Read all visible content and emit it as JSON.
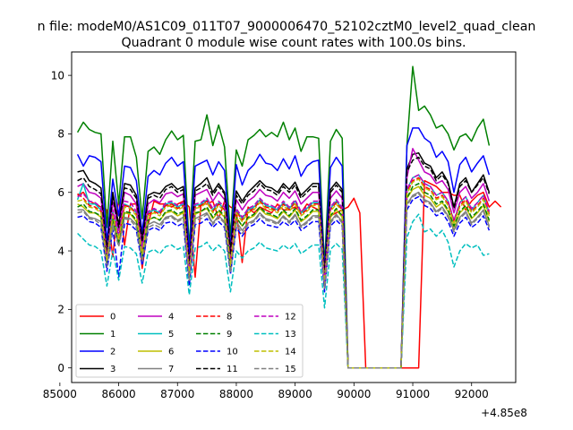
{
  "chart_data": {
    "type": "line",
    "suptitle": "n file: modeM0/AS1C09_011T07_9000006470_52102cztM0_level2_quad_clean",
    "title": "Quadrant 0 module wise count rates with 100.0s bins.",
    "xlabel": "",
    "ylabel": "",
    "x_offset_label": "+4.85e8",
    "xlim": [
      85200,
      92750
    ],
    "ylim": [
      -0.5,
      10.8
    ],
    "x_ticks": [
      85000,
      86000,
      87000,
      88000,
      89000,
      90000,
      91000,
      92000
    ],
    "x_tick_labels": [
      "85000",
      "86000",
      "87000",
      "88000",
      "89000",
      "90000",
      "91000",
      "92000"
    ],
    "y_ticks": [
      0,
      2,
      4,
      6,
      8,
      10
    ],
    "y_tick_labels": [
      "0",
      "2",
      "4",
      "6",
      "8",
      "10"
    ],
    "x_start": 85300,
    "x_step": 100,
    "legend_position": "lower-left",
    "legend_columns": 4,
    "series": [
      {
        "name": "0",
        "color": "#ff0000",
        "dash": "solid",
        "values": [
          5.9,
          6.0,
          5.7,
          5.6,
          5.5,
          5.4,
          3.8,
          5.8,
          4.2,
          5.6,
          5.6,
          3.4,
          4.9,
          5.7,
          5.6,
          5.6,
          5.5,
          5.6,
          5.7,
          5.5,
          3.1,
          5.6,
          5.6,
          5.7,
          5.1,
          5.7,
          5.5,
          5.4,
          3.6,
          5.5,
          5.3,
          5.5,
          5.4,
          5.3,
          5.6,
          5.4,
          5.4,
          5.5,
          5.3,
          5.6,
          5.5,
          5.4,
          3.0,
          5.2,
          5.3,
          5.4,
          5.5,
          5.8,
          5.3,
          0,
          0,
          0,
          0,
          0,
          0,
          0,
          0,
          0,
          0,
          6.4,
          6.3,
          6.2,
          6.0,
          6.0,
          5.9,
          5.9,
          5.4,
          5.7,
          5.9,
          6.0,
          5.5,
          5.7,
          5.5
        ]
      },
      {
        "name": "1",
        "color": "#008000",
        "dash": "solid",
        "values": [
          8.05,
          8.4,
          8.15,
          8.05,
          8.0,
          4.8,
          7.75,
          5.6,
          7.9,
          7.9,
          7.2,
          5.1,
          7.4,
          7.55,
          7.3,
          7.8,
          8.1,
          7.8,
          7.95,
          4.1,
          7.75,
          7.8,
          8.65,
          7.6,
          8.3,
          7.55,
          4.5,
          7.45,
          6.9,
          7.8,
          7.95,
          8.15,
          7.9,
          8.05,
          7.9,
          8.4,
          7.8,
          8.2,
          7.4,
          7.9,
          7.9,
          7.85,
          3.5,
          7.75,
          8.15,
          7.85,
          0,
          0,
          0,
          0,
          0,
          0,
          0,
          0,
          0,
          0,
          7.6,
          10.3,
          8.8,
          8.95,
          8.65,
          8.2,
          8.3,
          8.0,
          7.45,
          7.9,
          8.0,
          7.75,
          8.2,
          8.5,
          7.6
        ]
      },
      {
        "name": "2",
        "color": "#0000ff",
        "dash": "solid",
        "values": [
          7.3,
          6.9,
          7.25,
          7.2,
          7.05,
          4.3,
          6.45,
          5.2,
          6.9,
          6.85,
          6.4,
          4.6,
          6.55,
          6.75,
          6.6,
          7.0,
          7.2,
          6.9,
          7.05,
          3.9,
          6.9,
          7.0,
          7.1,
          6.6,
          7.05,
          6.75,
          4.1,
          6.95,
          6.25,
          6.75,
          6.95,
          7.3,
          7.0,
          6.95,
          6.75,
          7.15,
          6.8,
          7.25,
          6.55,
          6.9,
          7.05,
          7.1,
          3.3,
          6.85,
          7.2,
          6.9,
          0,
          0,
          0,
          0,
          0,
          0,
          0,
          0,
          0,
          0,
          7.6,
          8.2,
          8.2,
          7.85,
          7.7,
          7.2,
          7.4,
          7.05,
          6.0,
          6.95,
          7.2,
          6.7,
          7.0,
          7.25,
          6.6
        ]
      },
      {
        "name": "3",
        "color": "#000000",
        "dash": "solid",
        "values": [
          6.7,
          6.75,
          6.4,
          6.3,
          6.15,
          4.0,
          6.0,
          4.9,
          6.3,
          6.25,
          5.9,
          4.4,
          5.9,
          6.0,
          5.95,
          6.2,
          6.3,
          6.1,
          6.2,
          3.5,
          6.15,
          6.3,
          6.5,
          6.0,
          6.3,
          6.0,
          4.0,
          6.05,
          5.7,
          6.0,
          6.2,
          6.4,
          6.2,
          6.15,
          6.0,
          6.3,
          6.1,
          6.35,
          5.9,
          6.1,
          6.3,
          6.3,
          3.2,
          6.1,
          6.35,
          6.1,
          0,
          0,
          0,
          0,
          0,
          0,
          0,
          0,
          0,
          0,
          6.8,
          7.3,
          7.35,
          7.0,
          6.9,
          6.5,
          6.7,
          6.35,
          5.5,
          6.3,
          6.5,
          6.0,
          6.3,
          6.6,
          6.0
        ]
      },
      {
        "name": "4",
        "color": "#bf00bf",
        "dash": "solid",
        "values": [
          6.2,
          6.3,
          6.0,
          5.95,
          5.8,
          3.9,
          5.7,
          4.7,
          6.0,
          5.9,
          5.6,
          4.2,
          5.6,
          5.75,
          5.65,
          5.95,
          6.0,
          5.85,
          5.95,
          3.4,
          5.9,
          6.0,
          6.1,
          5.7,
          6.0,
          5.75,
          3.8,
          5.75,
          5.4,
          5.7,
          5.85,
          6.1,
          5.9,
          5.85,
          5.7,
          6.0,
          5.8,
          6.05,
          5.6,
          5.8,
          6.0,
          6.0,
          3.1,
          5.8,
          6.05,
          5.8,
          0,
          0,
          0,
          0,
          0,
          0,
          0,
          0,
          0,
          0,
          6.5,
          7.5,
          7.1,
          6.7,
          6.6,
          6.3,
          6.4,
          6.1,
          5.3,
          6.0,
          6.2,
          5.8,
          6.0,
          6.3,
          5.7
        ]
      },
      {
        "name": "5",
        "color": "#00bfbf",
        "dash": "solid",
        "values": [
          5.75,
          6.3,
          5.6,
          5.6,
          5.4,
          3.7,
          5.35,
          4.5,
          5.6,
          5.5,
          5.3,
          4.0,
          5.3,
          5.4,
          5.3,
          5.6,
          5.65,
          5.5,
          5.6,
          3.2,
          5.55,
          5.6,
          5.75,
          5.4,
          5.65,
          5.4,
          3.6,
          5.4,
          5.1,
          5.4,
          5.5,
          5.75,
          5.55,
          5.5,
          5.4,
          5.65,
          5.45,
          5.7,
          5.3,
          5.45,
          5.65,
          5.65,
          2.9,
          5.45,
          5.7,
          5.45,
          0,
          0,
          0,
          0,
          0,
          0,
          0,
          0,
          0,
          0,
          6.1,
          6.5,
          6.6,
          6.3,
          6.2,
          5.9,
          6.0,
          5.7,
          5.0,
          5.65,
          5.85,
          5.4,
          5.65,
          5.9,
          5.3
        ]
      },
      {
        "name": "6",
        "color": "#bfbf00",
        "dash": "solid",
        "values": [
          5.6,
          5.5,
          5.3,
          5.3,
          5.15,
          3.6,
          5.1,
          4.3,
          5.3,
          5.25,
          5.0,
          3.8,
          5.05,
          5.15,
          5.05,
          5.3,
          5.35,
          5.2,
          5.3,
          3.1,
          5.25,
          5.35,
          5.45,
          5.1,
          5.35,
          5.15,
          3.4,
          5.15,
          4.85,
          5.1,
          5.2,
          5.45,
          5.25,
          5.2,
          5.1,
          5.35,
          5.15,
          5.4,
          5.0,
          5.15,
          5.35,
          5.35,
          2.8,
          5.15,
          5.4,
          5.15,
          0,
          0,
          0,
          0,
          0,
          0,
          0,
          0,
          0,
          0,
          5.8,
          6.1,
          6.2,
          5.9,
          5.8,
          5.5,
          5.65,
          5.35,
          4.8,
          5.3,
          5.5,
          5.1,
          5.3,
          5.55,
          5.0
        ]
      },
      {
        "name": "7",
        "color": "#808080",
        "dash": "solid",
        "values": [
          5.4,
          5.4,
          5.15,
          5.1,
          5.0,
          3.5,
          4.95,
          4.2,
          5.15,
          5.1,
          4.9,
          3.7,
          4.9,
          5.0,
          4.9,
          5.15,
          5.2,
          5.05,
          5.15,
          3.0,
          5.1,
          5.2,
          5.3,
          4.95,
          5.2,
          5.0,
          3.3,
          5.0,
          4.7,
          4.95,
          5.05,
          5.3,
          5.1,
          5.05,
          4.95,
          5.2,
          5.0,
          5.25,
          4.85,
          5.0,
          5.2,
          5.2,
          2.7,
          5.0,
          5.25,
          5.0,
          0,
          0,
          0,
          0,
          0,
          0,
          0,
          0,
          0,
          0,
          5.6,
          5.9,
          6.0,
          5.75,
          5.65,
          5.35,
          5.5,
          5.2,
          4.7,
          5.15,
          5.35,
          4.95,
          5.15,
          5.4,
          4.85
        ]
      },
      {
        "name": "8",
        "color": "#ff0000",
        "dash": "dashed",
        "values": [
          5.95,
          5.8,
          5.55,
          5.5,
          5.35,
          3.7,
          5.3,
          4.45,
          5.55,
          5.5,
          5.25,
          3.95,
          5.25,
          5.35,
          5.25,
          5.55,
          5.6,
          5.45,
          5.55,
          3.2,
          5.5,
          5.55,
          5.7,
          5.35,
          5.6,
          5.4,
          3.55,
          5.35,
          5.05,
          5.35,
          5.45,
          5.7,
          5.5,
          5.45,
          5.35,
          5.6,
          5.4,
          5.65,
          5.25,
          5.4,
          5.6,
          5.6,
          2.9,
          5.4,
          5.65,
          5.4,
          0,
          0,
          0,
          0,
          0,
          0,
          0,
          0,
          0,
          0,
          6.0,
          6.4,
          6.5,
          6.2,
          6.1,
          5.8,
          5.9,
          5.6,
          5.0,
          5.55,
          5.75,
          5.35,
          5.55,
          5.8,
          5.25
        ]
      },
      {
        "name": "9",
        "color": "#008000",
        "dash": "dashed",
        "values": [
          5.5,
          5.6,
          5.35,
          5.3,
          5.2,
          3.6,
          5.1,
          4.3,
          5.35,
          5.3,
          5.05,
          3.8,
          5.05,
          5.15,
          5.05,
          5.35,
          5.4,
          5.25,
          5.35,
          3.1,
          5.3,
          5.35,
          5.5,
          5.15,
          5.4,
          5.2,
          3.45,
          5.15,
          4.85,
          5.15,
          5.25,
          5.5,
          5.3,
          5.25,
          5.15,
          5.4,
          5.2,
          5.45,
          5.05,
          5.2,
          5.4,
          5.4,
          2.8,
          5.2,
          5.45,
          5.2,
          0,
          0,
          0,
          0,
          0,
          0,
          0,
          0,
          0,
          0,
          5.8,
          6.2,
          6.3,
          6.0,
          5.9,
          5.6,
          5.7,
          5.4,
          4.85,
          5.35,
          5.55,
          5.15,
          5.35,
          5.6,
          5.05
        ]
      },
      {
        "name": "10",
        "color": "#0000ff",
        "dash": "dashed",
        "values": [
          5.15,
          5.2,
          5.0,
          4.95,
          4.8,
          3.3,
          4.75,
          3.1,
          4.95,
          4.9,
          4.7,
          3.5,
          4.7,
          4.8,
          4.7,
          4.95,
          5.0,
          4.85,
          4.95,
          2.8,
          4.9,
          4.95,
          5.1,
          4.8,
          5.0,
          4.8,
          3.2,
          4.8,
          4.5,
          4.8,
          4.9,
          5.1,
          4.9,
          4.85,
          4.8,
          5.0,
          4.85,
          5.05,
          4.7,
          4.85,
          5.0,
          5.0,
          2.6,
          4.85,
          5.05,
          4.85,
          0,
          0,
          0,
          0,
          0,
          0,
          0,
          0,
          0,
          0,
          5.4,
          5.75,
          5.85,
          5.55,
          5.45,
          5.2,
          5.3,
          5.0,
          4.5,
          4.95,
          5.15,
          4.8,
          4.95,
          5.2,
          4.7
        ]
      },
      {
        "name": "11",
        "color": "#000000",
        "dash": "dashed",
        "values": [
          6.4,
          6.5,
          6.2,
          6.1,
          5.95,
          4.0,
          5.85,
          4.8,
          6.15,
          6.1,
          5.8,
          4.3,
          5.8,
          5.9,
          5.8,
          6.1,
          6.2,
          6.0,
          6.1,
          3.5,
          6.05,
          6.15,
          6.3,
          5.9,
          6.2,
          5.95,
          3.9,
          5.9,
          5.6,
          5.9,
          6.05,
          6.3,
          6.1,
          6.05,
          5.9,
          6.2,
          6.0,
          6.25,
          5.8,
          6.0,
          6.2,
          6.2,
          3.2,
          6.0,
          6.25,
          6.0,
          0,
          0,
          0,
          0,
          0,
          0,
          0,
          0,
          0,
          0,
          6.7,
          7.1,
          7.2,
          6.9,
          6.8,
          6.4,
          6.6,
          6.3,
          5.45,
          6.2,
          6.4,
          6.0,
          6.25,
          6.5,
          5.95
        ]
      },
      {
        "name": "12",
        "color": "#bf00bf",
        "dash": "dashed",
        "values": [
          5.85,
          5.95,
          5.7,
          5.65,
          5.5,
          3.75,
          5.4,
          4.5,
          5.7,
          5.65,
          5.35,
          4.05,
          5.35,
          5.45,
          5.35,
          5.65,
          5.7,
          5.55,
          5.65,
          3.25,
          5.6,
          5.65,
          5.8,
          5.45,
          5.7,
          5.5,
          3.6,
          5.45,
          5.15,
          5.45,
          5.55,
          5.8,
          5.6,
          5.55,
          5.45,
          5.7,
          5.5,
          5.75,
          5.35,
          5.5,
          5.7,
          5.7,
          2.95,
          5.5,
          5.75,
          5.5,
          0,
          0,
          0,
          0,
          0,
          0,
          0,
          0,
          0,
          0,
          6.1,
          6.5,
          6.6,
          6.3,
          6.2,
          5.9,
          6.0,
          5.7,
          5.05,
          5.65,
          5.85,
          5.45,
          5.65,
          5.9,
          5.35
        ]
      },
      {
        "name": "13",
        "color": "#00bfbf",
        "dash": "dashed",
        "values": [
          4.6,
          4.4,
          4.2,
          4.15,
          4.0,
          2.8,
          4.0,
          3.0,
          4.15,
          4.1,
          3.9,
          2.9,
          3.95,
          4.05,
          3.9,
          4.15,
          4.2,
          4.05,
          4.15,
          2.5,
          4.1,
          4.15,
          4.3,
          4.0,
          4.2,
          4.0,
          2.6,
          4.0,
          3.75,
          4.0,
          4.1,
          4.3,
          4.1,
          4.05,
          4.0,
          4.2,
          4.05,
          4.25,
          3.9,
          4.05,
          4.2,
          4.2,
          2.05,
          4.05,
          4.25,
          4.05,
          0,
          0,
          0,
          0,
          0,
          0,
          0,
          0,
          0,
          0,
          4.45,
          5.0,
          5.25,
          4.65,
          4.75,
          4.5,
          4.7,
          4.3,
          3.45,
          4.0,
          4.25,
          4.1,
          4.2,
          3.85,
          3.9
        ]
      },
      {
        "name": "14",
        "color": "#bfbf00",
        "dash": "dashed",
        "values": [
          5.7,
          5.75,
          5.5,
          5.45,
          5.3,
          3.65,
          5.2,
          4.4,
          5.5,
          5.45,
          5.2,
          3.9,
          5.2,
          5.3,
          5.2,
          5.5,
          5.55,
          5.4,
          5.5,
          3.15,
          5.45,
          5.5,
          5.65,
          5.3,
          5.55,
          5.35,
          3.5,
          5.3,
          5.0,
          5.3,
          5.4,
          5.65,
          5.45,
          5.4,
          5.3,
          5.55,
          5.35,
          5.6,
          5.2,
          5.35,
          5.55,
          5.55,
          2.85,
          5.35,
          5.6,
          5.35,
          0,
          0,
          0,
          0,
          0,
          0,
          0,
          0,
          0,
          0,
          5.95,
          6.35,
          6.45,
          6.15,
          6.05,
          5.75,
          5.85,
          5.55,
          4.95,
          5.5,
          5.7,
          5.3,
          5.5,
          5.75,
          5.2
        ]
      },
      {
        "name": "15",
        "color": "#808080",
        "dash": "dashed",
        "values": [
          5.3,
          5.35,
          5.1,
          5.05,
          4.9,
          3.45,
          4.85,
          4.15,
          5.1,
          5.05,
          4.8,
          3.65,
          4.8,
          4.9,
          4.8,
          5.1,
          5.15,
          5.0,
          5.1,
          2.95,
          5.05,
          5.1,
          5.25,
          4.9,
          5.15,
          4.95,
          3.25,
          4.9,
          4.6,
          4.9,
          5.0,
          5.25,
          5.05,
          5.0,
          4.9,
          5.15,
          4.95,
          5.2,
          4.8,
          4.95,
          5.15,
          5.15,
          2.7,
          4.95,
          5.2,
          4.95,
          0,
          0,
          0,
          0,
          0,
          0,
          0,
          0,
          0,
          0,
          5.55,
          5.85,
          5.95,
          5.7,
          5.6,
          5.3,
          5.45,
          5.15,
          4.65,
          5.1,
          5.3,
          4.9,
          5.1,
          5.35,
          4.8
        ]
      }
    ]
  }
}
